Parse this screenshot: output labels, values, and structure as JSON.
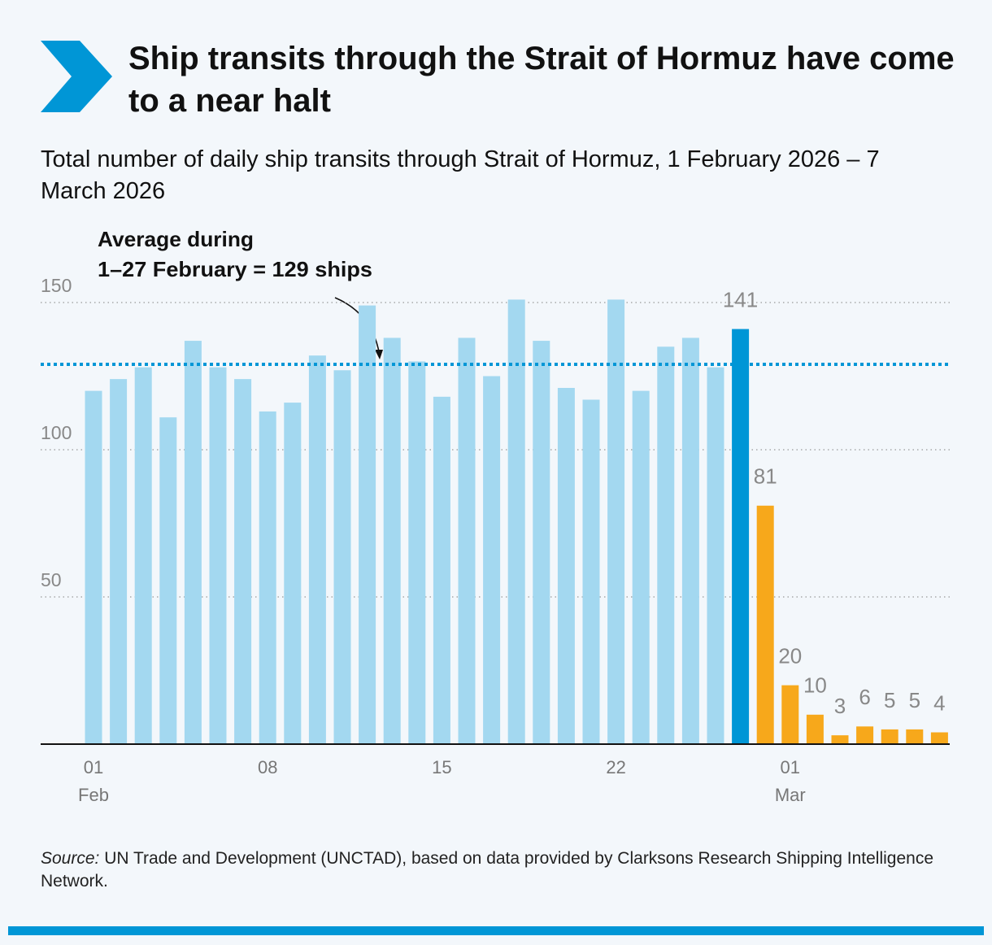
{
  "chart_data": {
    "type": "bar",
    "title": "Ship transits through the Strait of Hormuz have come to a near halt",
    "subtitle": "Total number of daily ship transits through Strait of Hormuz, 1 February 2026 – 7 March 2026",
    "annotation": [
      "Average during",
      "1–27 February = 129 ships"
    ],
    "reference_line": {
      "value": 129,
      "color": "#0096d6"
    },
    "source_prefix": "Source:",
    "source": "UN Trade and Development (UNCTAD), based on data provided by Clarksons Research Shipping Intelligence Network.",
    "categories": [
      "01",
      null,
      null,
      null,
      null,
      null,
      null,
      "08",
      null,
      null,
      null,
      null,
      null,
      null,
      "15",
      null,
      null,
      null,
      null,
      null,
      null,
      "22",
      null,
      null,
      null,
      null,
      null,
      null,
      "01",
      null,
      null,
      null,
      null,
      null,
      null
    ],
    "category_sublabels": [
      "Feb",
      null,
      null,
      null,
      null,
      null,
      null,
      null,
      null,
      null,
      null,
      null,
      null,
      null,
      null,
      null,
      null,
      null,
      null,
      null,
      null,
      null,
      null,
      null,
      null,
      null,
      null,
      null,
      "Mar",
      null,
      null,
      null,
      null,
      null,
      null
    ],
    "values": [
      120,
      124,
      128,
      111,
      137,
      128,
      124,
      113,
      116,
      132,
      127,
      149,
      138,
      130,
      118,
      138,
      125,
      151,
      137,
      121,
      117,
      151,
      120,
      135,
      138,
      128,
      141,
      81,
      20,
      10,
      3,
      6,
      5,
      5,
      4
    ],
    "colors": [
      "#a3d8f0",
      "#a3d8f0",
      "#a3d8f0",
      "#a3d8f0",
      "#a3d8f0",
      "#a3d8f0",
      "#a3d8f0",
      "#a3d8f0",
      "#a3d8f0",
      "#a3d8f0",
      "#a3d8f0",
      "#a3d8f0",
      "#a3d8f0",
      "#a3d8f0",
      "#a3d8f0",
      "#a3d8f0",
      "#a3d8f0",
      "#a3d8f0",
      "#a3d8f0",
      "#a3d8f0",
      "#a3d8f0",
      "#a3d8f0",
      "#a3d8f0",
      "#a3d8f0",
      "#a3d8f0",
      "#a3d8f0",
      "#0096d6",
      "#f7a81b",
      "#f7a81b",
      "#f7a81b",
      "#f7a81b",
      "#f7a81b",
      "#f7a81b",
      "#f7a81b",
      "#f7a81b"
    ],
    "show_value_labels": [
      false,
      false,
      false,
      false,
      false,
      false,
      false,
      false,
      false,
      false,
      false,
      false,
      false,
      false,
      false,
      false,
      false,
      false,
      false,
      false,
      false,
      false,
      false,
      false,
      false,
      false,
      true,
      true,
      true,
      true,
      true,
      true,
      true,
      true,
      true
    ],
    "ylim": [
      0,
      150
    ],
    "yticks": [
      50,
      100,
      150
    ],
    "grid": true
  }
}
